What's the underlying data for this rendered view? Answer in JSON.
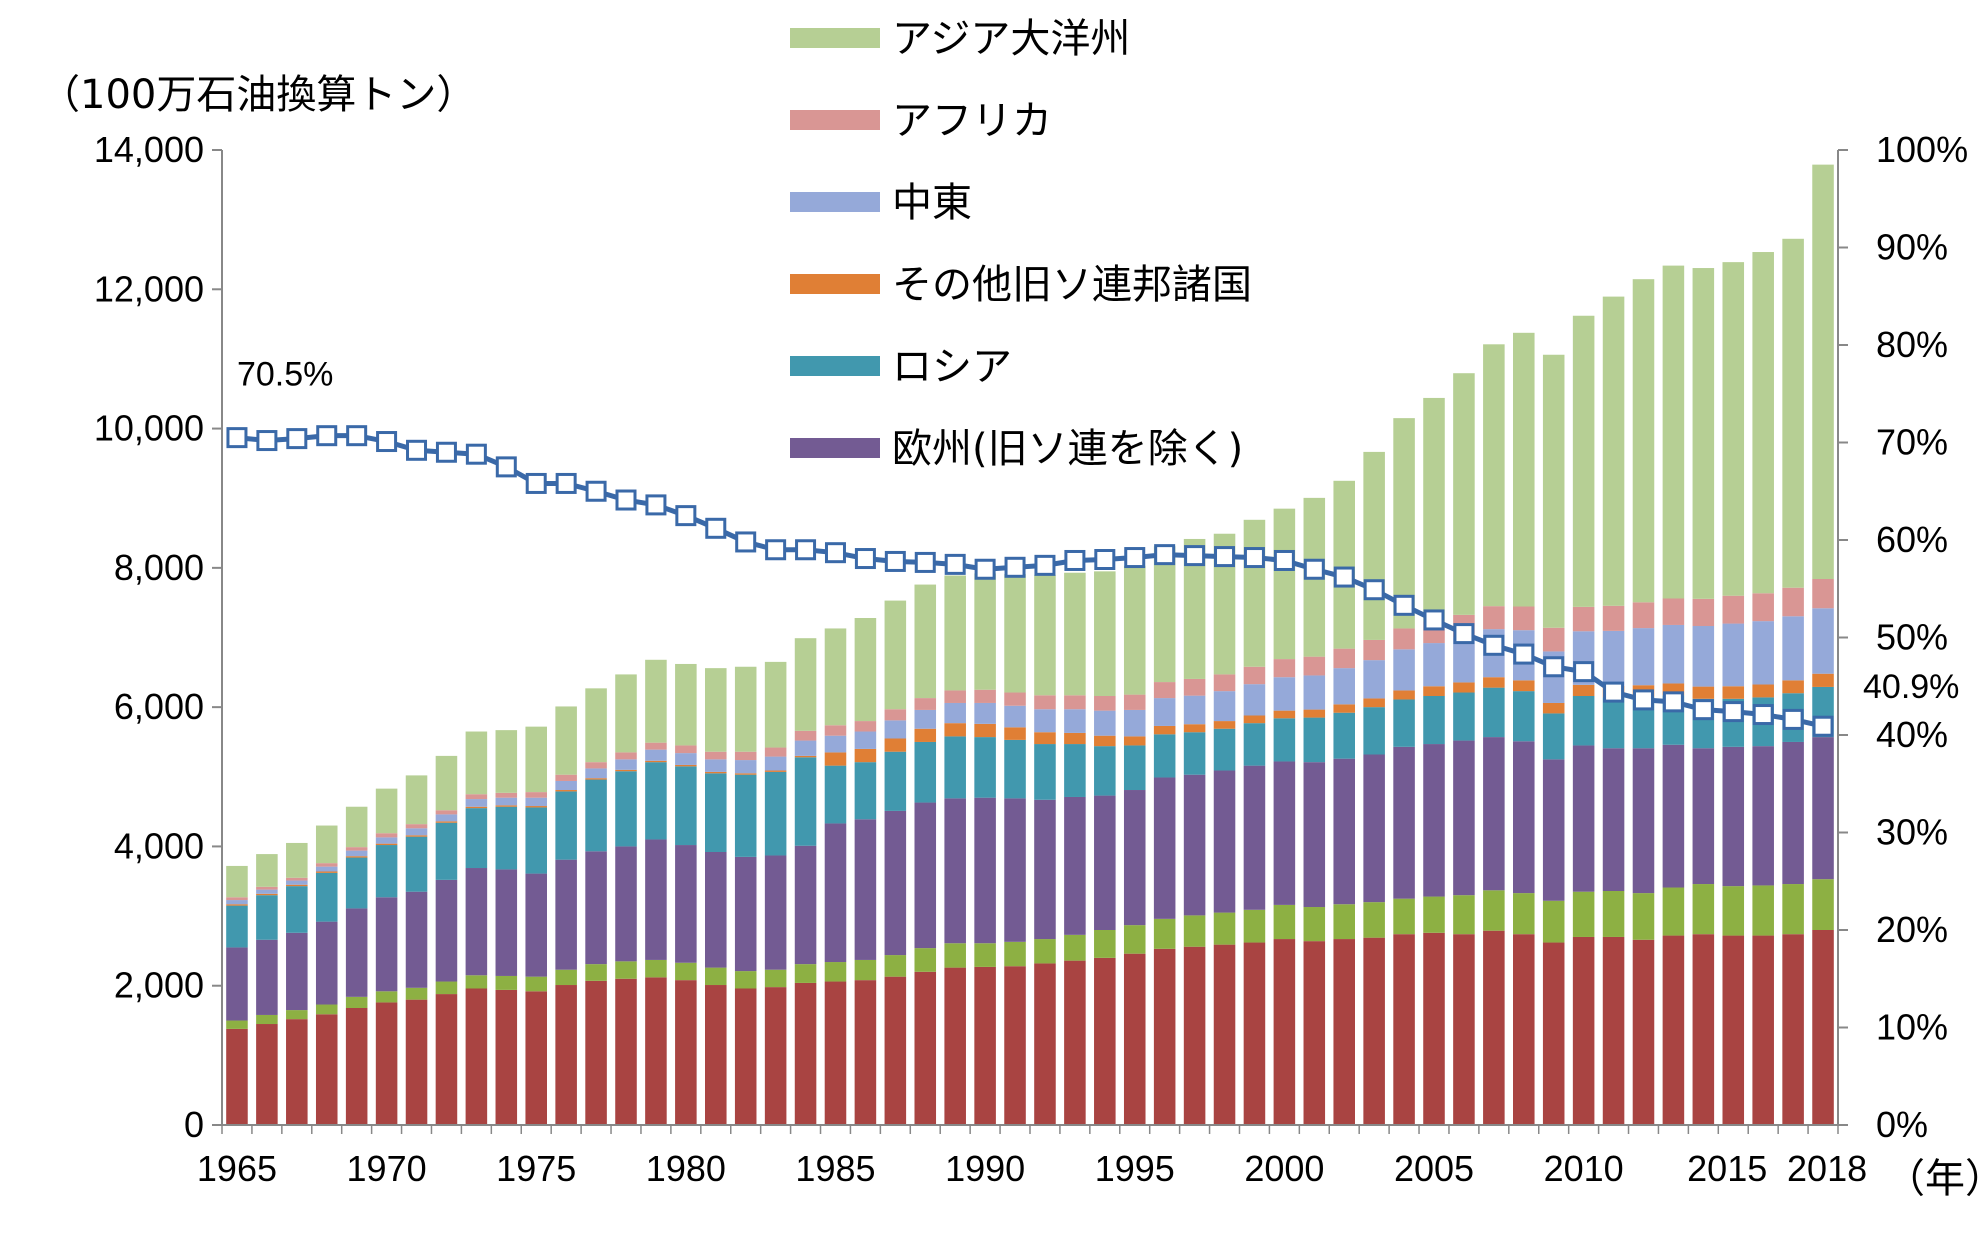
{
  "chart_data": {
    "type": "bar",
    "stacked": true,
    "y_unit_label": "（100万石油換算トン）",
    "x_unit_label": "（年）",
    "ylim": [
      0,
      14000
    ],
    "y2lim": [
      0,
      1
    ],
    "y_ticks": [
      "0",
      "2,000",
      "4,000",
      "6,000",
      "8,000",
      "10,000",
      "12,000",
      "14,000"
    ],
    "y2_ticks": [
      "0%",
      "10%",
      "20%",
      "30%",
      "40%",
      "50%",
      "60%",
      "70%",
      "80%",
      "90%",
      "100%"
    ],
    "x_tick_labels": [
      "1965",
      "1970",
      "1975",
      "1980",
      "1985",
      "1990",
      "1995",
      "2000",
      "2005",
      "2010",
      "2015",
      "2018"
    ],
    "grid": false,
    "legend_position": "top-center",
    "categories": [
      1965,
      1966,
      1967,
      1968,
      1969,
      1970,
      1971,
      1972,
      1973,
      1974,
      1975,
      1976,
      1977,
      1978,
      1979,
      1980,
      1981,
      1982,
      1983,
      1984,
      1985,
      1986,
      1987,
      1988,
      1989,
      1990,
      1991,
      1992,
      1993,
      1994,
      1995,
      1996,
      1997,
      1998,
      1999,
      2000,
      2001,
      2002,
      2003,
      2004,
      2005,
      2006,
      2007,
      2008,
      2009,
      2010,
      2011,
      2012,
      2013,
      2014,
      2015,
      2016,
      2017,
      2018
    ],
    "series": [
      {
        "color": "#a94442",
        "values": [
          1380,
          1450,
          1520,
          1590,
          1680,
          1760,
          1800,
          1880,
          1960,
          1940,
          1920,
          2010,
          2070,
          2100,
          2120,
          2080,
          2010,
          1960,
          1980,
          2040,
          2060,
          2080,
          2130,
          2200,
          2260,
          2270,
          2280,
          2320,
          2360,
          2400,
          2460,
          2530,
          2560,
          2590,
          2620,
          2670,
          2640,
          2670,
          2690,
          2740,
          2760,
          2740,
          2790,
          2740,
          2620,
          2700,
          2700,
          2660,
          2720,
          2740,
          2720,
          2720,
          2740,
          2800
        ]
      },
      {
        "color": "#8db043",
        "values": [
          120,
          130,
          130,
          140,
          160,
          160,
          170,
          180,
          190,
          200,
          210,
          220,
          240,
          250,
          250,
          250,
          250,
          250,
          250,
          270,
          280,
          290,
          310,
          340,
          350,
          340,
          350,
          350,
          370,
          400,
          410,
          430,
          450,
          460,
          470,
          490,
          490,
          500,
          510,
          510,
          520,
          560,
          580,
          590,
          600,
          650,
          660,
          670,
          690,
          720,
          710,
          720,
          720,
          730
        ]
      },
      {
        "color": "#735b93",
        "values": [
          1050,
          1080,
          1110,
          1190,
          1270,
          1350,
          1380,
          1460,
          1540,
          1530,
          1480,
          1580,
          1620,
          1650,
          1730,
          1690,
          1660,
          1640,
          1640,
          1700,
          1990,
          2020,
          2070,
          2090,
          2080,
          2090,
          2060,
          2000,
          1980,
          1930,
          1940,
          2030,
          2020,
          2040,
          2070,
          2060,
          2080,
          2090,
          2120,
          2180,
          2190,
          2220,
          2200,
          2180,
          2030,
          2100,
          2050,
          2080,
          2050,
          1950,
          2000,
          2000,
          2040,
          2040
        ]
      },
      {
        "color": "#4198ae",
        "values": [
          600,
          640,
          670,
          700,
          730,
          750,
          790,
          820,
          860,
          900,
          950,
          980,
          1030,
          1080,
          1110,
          1130,
          1130,
          1180,
          1200,
          1270,
          830,
          820,
          850,
          870,
          890,
          870,
          840,
          800,
          760,
          710,
          640,
          620,
          610,
          600,
          610,
          620,
          640,
          660,
          680,
          680,
          690,
          690,
          710,
          720,
          660,
          710,
          730,
          740,
          710,
          710,
          690,
          700,
          700,
          720
        ]
      },
      {
        "color": "#e07f35",
        "values": [
          20,
          20,
          20,
          20,
          20,
          20,
          20,
          20,
          20,
          20,
          20,
          20,
          20,
          20,
          20,
          20,
          20,
          20,
          20,
          20,
          190,
          190,
          190,
          190,
          190,
          190,
          180,
          170,
          160,
          150,
          130,
          120,
          115,
          110,
          110,
          110,
          115,
          120,
          125,
          130,
          140,
          145,
          150,
          155,
          150,
          160,
          165,
          165,
          170,
          175,
          180,
          185,
          185,
          190
        ]
      },
      {
        "color": "#95a9d9",
        "values": [
          60,
          60,
          60,
          70,
          80,
          90,
          100,
          100,
          110,
          110,
          120,
          130,
          140,
          150,
          160,
          170,
          180,
          190,
          200,
          220,
          240,
          250,
          260,
          270,
          290,
          300,
          310,
          330,
          340,
          360,
          380,
          400,
          410,
          430,
          450,
          480,
          490,
          520,
          550,
          590,
          620,
          650,
          690,
          720,
          740,
          770,
          790,
          820,
          840,
          870,
          900,
          910,
          920,
          940
        ]
      },
      {
        "color": "#d99694",
        "values": [
          40,
          40,
          40,
          50,
          50,
          60,
          60,
          60,
          70,
          70,
          80,
          90,
          90,
          100,
          100,
          110,
          110,
          120,
          130,
          140,
          150,
          150,
          160,
          170,
          180,
          190,
          190,
          200,
          200,
          210,
          220,
          230,
          240,
          240,
          250,
          260,
          270,
          280,
          290,
          300,
          310,
          320,
          330,
          340,
          340,
          350,
          360,
          370,
          380,
          390,
          400,
          400,
          410,
          420
        ]
      },
      {
        "color": "#b6cf94",
        "values": [
          450,
          470,
          500,
          540,
          580,
          640,
          700,
          780,
          900,
          900,
          940,
          980,
          1060,
          1120,
          1190,
          1170,
          1200,
          1220,
          1230,
          1330,
          1390,
          1480,
          1560,
          1630,
          1650,
          1670,
          1700,
          1730,
          1760,
          1790,
          1850,
          1950,
          2010,
          2020,
          2110,
          2160,
          2280,
          2410,
          2700,
          3020,
          3210,
          3470,
          3760,
          3930,
          3920,
          4180,
          4440,
          4640,
          4780,
          4750,
          4790,
          4900,
          5010,
          5950
        ]
      }
    ],
    "share_line": {
      "name": "",
      "color": "#3a69a8",
      "values": [
        0.705,
        0.702,
        0.704,
        0.707,
        0.707,
        0.701,
        0.692,
        0.69,
        0.688,
        0.675,
        0.658,
        0.658,
        0.65,
        0.641,
        0.636,
        0.625,
        0.612,
        0.598,
        0.59,
        0.59,
        0.587,
        0.581,
        0.578,
        0.577,
        0.575,
        0.57,
        0.572,
        0.574,
        0.579,
        0.58,
        0.582,
        0.585,
        0.584,
        0.583,
        0.582,
        0.579,
        0.57,
        0.562,
        0.549,
        0.533,
        0.518,
        0.504,
        0.492,
        0.483,
        0.47,
        0.465,
        0.444,
        0.436,
        0.434,
        0.426,
        0.424,
        0.421,
        0.416,
        0.409
      ]
    },
    "annotations": [
      {
        "text": "70.5%",
        "year": 1965,
        "share": 0.705
      },
      {
        "text": "40.9%",
        "year": 2018,
        "share": 0.409
      }
    ]
  },
  "legend": {
    "items": [
      {
        "label": "アジア大洋州",
        "color": "#b6cf94"
      },
      {
        "label": "アフリカ",
        "color": "#d99694"
      },
      {
        "label": "中東",
        "color": "#95a9d9"
      },
      {
        "label": "その他旧ソ連邦諸国",
        "color": "#e07f35"
      },
      {
        "label": "ロシア",
        "color": "#4198ae"
      },
      {
        "label": "欧州(旧ソ連を除く)",
        "color": "#735b93"
      }
    ]
  }
}
